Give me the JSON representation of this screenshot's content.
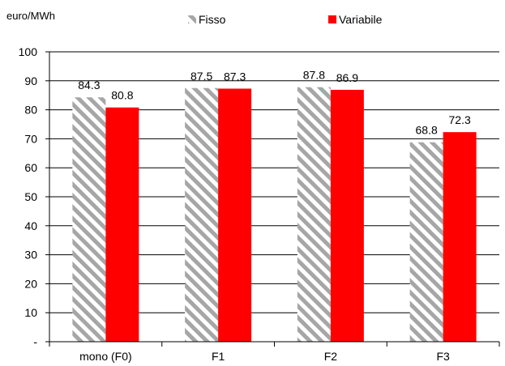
{
  "chart_data": {
    "type": "bar",
    "ylabel": "euro/MWh",
    "categories": [
      "mono (F0)",
      "F1",
      "F2",
      "F3"
    ],
    "series": [
      {
        "name": "Fisso",
        "values": [
          84.3,
          87.5,
          87.8,
          68.8
        ],
        "labels": [
          "84.3",
          "87.5",
          "87.8",
          "68.8"
        ],
        "pattern": "diagonal-hatch",
        "color": "#a6a6a6"
      },
      {
        "name": "Variabile",
        "values": [
          80.8,
          87.3,
          86.9,
          72.3
        ],
        "labels": [
          "80.8",
          "87.3",
          "86.9",
          "72.3"
        ],
        "color": "#ff0000"
      }
    ],
    "ylim": [
      0,
      100
    ],
    "yticks": [
      0,
      10,
      20,
      30,
      40,
      50,
      60,
      70,
      80,
      90,
      100
    ],
    "ytick_labels": [
      "-",
      "10",
      "20",
      "30",
      "40",
      "50",
      "60",
      "70",
      "80",
      "90",
      "100"
    ],
    "legend_position": "top",
    "grid": true
  }
}
